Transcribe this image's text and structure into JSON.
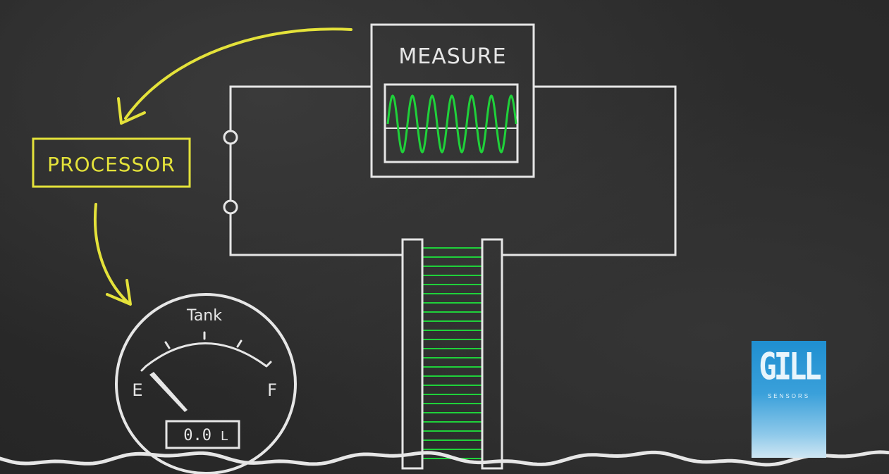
{
  "diagram": {
    "measure_label": "MEASURE",
    "processor_label": "PROCESSOR",
    "gauge": {
      "title": "Tank",
      "empty_label": "E",
      "full_label": "F",
      "readout_value": "0.0",
      "readout_unit": "L"
    }
  },
  "logo": {
    "brand": "GILL",
    "subtitle": "SENSORS"
  },
  "colors": {
    "chalk": "#e6e6e6",
    "highlight": "#e4e23a",
    "signal": "#1fd13a",
    "logo_blue": "#1f8fd1"
  }
}
